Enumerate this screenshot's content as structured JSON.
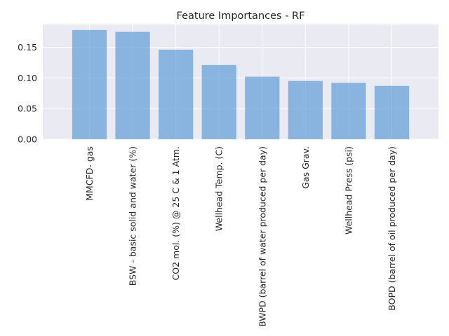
{
  "chart_data": {
    "type": "bar",
    "title": "Feature Importances - RF",
    "xlabel": "",
    "ylabel": "",
    "categories": [
      "MMCFD- gas",
      "BSW - basic solid and water (%)",
      "CO2 mol. (%) @ 25 C & 1 Atm.",
      "Wellhead Temp. (C)",
      "BWPD (barrel of water produced per day)",
      "Gas Grav.",
      "Wellhead Press (psi)",
      "BOPD (barrel of oil produced per day)"
    ],
    "values": [
      0.178,
      0.175,
      0.146,
      0.121,
      0.102,
      0.095,
      0.092,
      0.087
    ],
    "ylim": [
      0,
      0.187
    ],
    "yticks": [
      0.0,
      0.05,
      0.1,
      0.15
    ],
    "ytick_labels": [
      "0.00",
      "0.05",
      "0.10",
      "0.15"
    ],
    "grid": true,
    "colors": {
      "bar": "#5b9bd5",
      "plot_background": "#eaeaf2",
      "grid": "#ffffff"
    }
  }
}
